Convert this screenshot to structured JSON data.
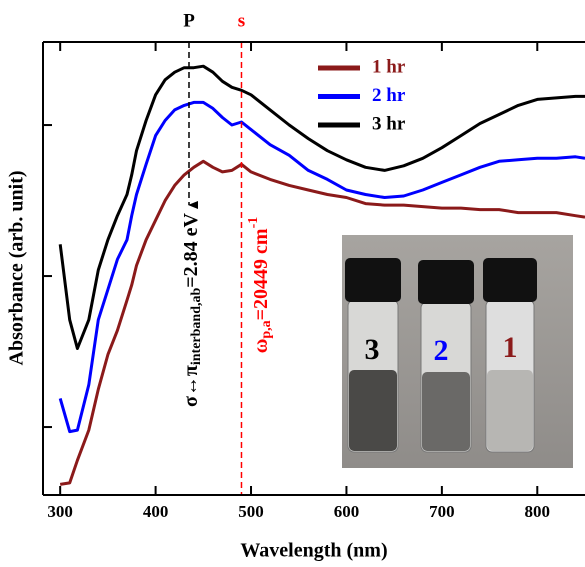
{
  "chart_data": {
    "type": "line",
    "x_label": "Wavelength (nm)",
    "y_label": "Absorbance (arb. unit)",
    "xlim": [
      282,
      850
    ],
    "xticks": [
      300,
      400,
      500,
      600,
      700,
      800
    ],
    "ylim": [
      -0.45,
      2.55
    ],
    "yticks": [
      0,
      1,
      2
    ],
    "x": [
      300,
      310,
      318,
      330,
      340,
      350,
      360,
      370,
      375,
      380,
      390,
      400,
      410,
      420,
      430,
      440,
      450,
      460,
      470,
      480,
      490,
      500,
      520,
      540,
      560,
      580,
      600,
      620,
      640,
      660,
      680,
      700,
      720,
      740,
      760,
      780,
      800,
      820,
      840,
      850
    ],
    "series": [
      {
        "name": "1 hr",
        "color": "#8b1a1a",
        "values": [
          -0.38,
          -0.37,
          -0.22,
          -0.02,
          0.25,
          0.48,
          0.64,
          0.84,
          0.94,
          1.07,
          1.24,
          1.37,
          1.5,
          1.6,
          1.67,
          1.72,
          1.76,
          1.72,
          1.69,
          1.7,
          1.74,
          1.69,
          1.64,
          1.6,
          1.57,
          1.54,
          1.52,
          1.48,
          1.47,
          1.47,
          1.46,
          1.45,
          1.45,
          1.44,
          1.44,
          1.42,
          1.42,
          1.42,
          1.4,
          1.39
        ]
      },
      {
        "name": "2 hr",
        "color": "#0000ff",
        "values": [
          0.19,
          -0.03,
          -0.02,
          0.28,
          0.71,
          0.91,
          1.11,
          1.24,
          1.4,
          1.54,
          1.74,
          1.93,
          2.03,
          2.1,
          2.13,
          2.15,
          2.15,
          2.11,
          2.05,
          2.0,
          2.02,
          1.97,
          1.87,
          1.8,
          1.7,
          1.64,
          1.57,
          1.54,
          1.52,
          1.53,
          1.57,
          1.62,
          1.67,
          1.72,
          1.76,
          1.77,
          1.78,
          1.78,
          1.79,
          1.78
        ]
      },
      {
        "name": "3 hr",
        "color": "#000000",
        "values": [
          1.21,
          0.71,
          0.52,
          0.71,
          1.04,
          1.24,
          1.4,
          1.54,
          1.67,
          1.83,
          2.03,
          2.2,
          2.3,
          2.35,
          2.38,
          2.38,
          2.39,
          2.35,
          2.29,
          2.25,
          2.23,
          2.2,
          2.1,
          2.0,
          1.91,
          1.83,
          1.77,
          1.72,
          1.7,
          1.73,
          1.78,
          1.85,
          1.93,
          2.01,
          2.07,
          2.13,
          2.17,
          2.18,
          2.19,
          2.19
        ]
      }
    ],
    "markers": [
      {
        "label": "P",
        "x": 435,
        "color": "#000000"
      },
      {
        "label": "s",
        "x": 490,
        "color": "#ff0000"
      }
    ],
    "notes": [
      {
        "parts": [
          "σ↔π",
          "interband,ab",
          "=2.84 eV"
        ]
      },
      {
        "parts": [
          "ω",
          "p,a",
          "=20449 cm",
          "-1"
        ]
      }
    ],
    "inset_labels": [
      "3",
      "2",
      "1"
    ]
  }
}
